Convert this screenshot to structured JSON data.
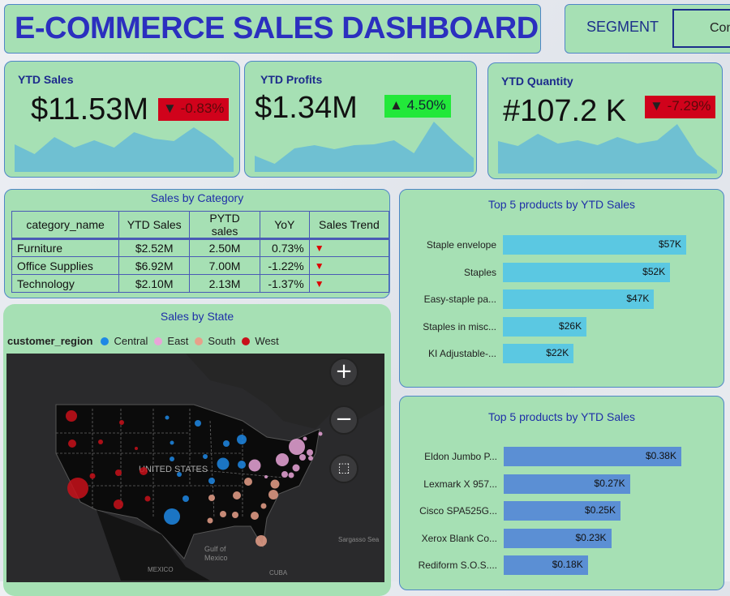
{
  "header": {
    "title": "E-COMMERCE SALES DASHBOARD",
    "segment_label": "SEGMENT",
    "segment_value": "Consumer"
  },
  "kpis": [
    {
      "label": "YTD Sales",
      "value": "$11.53M",
      "change": "-0.83%",
      "direction": "down",
      "arrow": "▼",
      "sparkline": [
        34,
        22,
        43,
        30,
        39,
        30,
        49,
        41,
        38,
        55,
        39,
        17
      ]
    },
    {
      "label": "YTD Profits",
      "value": "$1.34M",
      "change": "4.50%",
      "direction": "up",
      "arrow": "▲",
      "sparkline": [
        20,
        10,
        29,
        33,
        28,
        33,
        34,
        39,
        23,
        62,
        38,
        17
      ]
    },
    {
      "label": "YTD Quantity",
      "value": "#107.2 K",
      "change": "-7.29%",
      "direction": "down",
      "arrow": "▼",
      "sparkline": [
        40,
        34,
        49,
        37,
        41,
        35,
        45,
        37,
        41,
        61,
        23,
        4
      ]
    }
  ],
  "category_table": {
    "title": "Sales by Category",
    "columns": [
      "category_name",
      "YTD Sales",
      "PYTD sales",
      "YoY",
      "Sales Trend"
    ],
    "rows": [
      [
        "Furniture",
        "$2.52M",
        "2.50M",
        "0.73%",
        "▼"
      ],
      [
        "Office Supplies",
        "$6.92M",
        "7.00M",
        "-1.22%",
        "▼"
      ],
      [
        "Technology",
        "$2.10M",
        "2.13M",
        "-1.37%",
        "▼"
      ]
    ]
  },
  "map": {
    "title": "Sales by State",
    "legend_title": "customer_region",
    "regions": [
      {
        "name": "Central",
        "color": "#1e88e5"
      },
      {
        "name": "East",
        "color": "#e9a5d8"
      },
      {
        "name": "South",
        "color": "#e8a08a"
      },
      {
        "name": "West",
        "color": "#c8101a"
      }
    ],
    "labels": {
      "country": "UNITED STATES",
      "gulf": "Gulf of Mexico",
      "mexico": "MEXICO",
      "cuba": "CUBA",
      "sea": "Sargasso Sea"
    },
    "zoom_in": "+",
    "zoom_out": "−"
  },
  "chart_data": [
    {
      "type": "bar",
      "title": "Top 5 products by YTD Sales",
      "categories": [
        "Staple envelope",
        "Staples",
        "Easy-staple pa...",
        "Staples in misc...",
        "KI Adjustable-..."
      ],
      "values": [
        57,
        52,
        47,
        26,
        22
      ],
      "labels": [
        "$57K",
        "$52K",
        "$47K",
        "$26K",
        "$22K"
      ],
      "unit": "K",
      "color": "#5bc8e2"
    },
    {
      "type": "bar",
      "title": "Top 5 products by YTD Sales",
      "categories": [
        "Eldon Jumbo P...",
        "Lexmark X 957...",
        "Cisco SPA525G...",
        "Xerox Blank Co...",
        "Rediform S.O.S...."
      ],
      "values": [
        0.38,
        0.27,
        0.25,
        0.23,
        0.18
      ],
      "labels": [
        "$0.38K",
        "$0.27K",
        "$0.25K",
        "$0.23K",
        "$0.18K"
      ],
      "unit": "K",
      "color": "#5b8fd4"
    }
  ]
}
